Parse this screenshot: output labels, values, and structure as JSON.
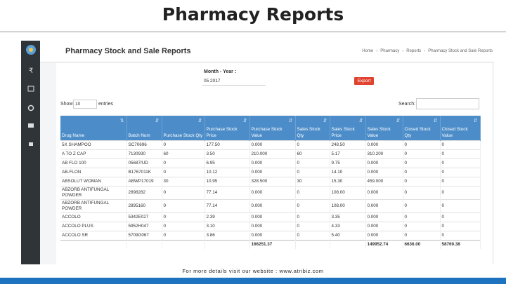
{
  "header": {
    "title": "Pharmacy Reports"
  },
  "report": {
    "title": "Pharmacy Stock and Sale Reports",
    "breadcrumb": [
      "Home",
      "Pharmacy",
      "Reports",
      "Pharmacy Stock and Sale Reports"
    ],
    "month_label": "Month - Year :",
    "month_value": "05 2017",
    "export": "Export",
    "show": "Show",
    "entries_value": "10",
    "entries": "entries",
    "search": "Search:"
  },
  "table": {
    "columns": [
      "Drug Name",
      "Batch Num",
      "Purchase Stock Qty",
      "Purchase Stock Price",
      "Purchase Stock Value",
      "Sales Stock Qty",
      "Sales Stock Price",
      "Sales Stock Value",
      "Closed Stock Qty",
      "Closed Stock Value"
    ],
    "rows": [
      [
        "5X SHAMPOO",
        "SC70696",
        "0",
        "177.50",
        "0.000",
        "0",
        "248.50",
        "0.000",
        "0",
        "0"
      ],
      [
        "A TO Z CAP",
        "7130930",
        "60",
        "3.50",
        "210.000",
        "60",
        "5.17",
        "310.200",
        "0",
        "0"
      ],
      [
        "AB FLO 100",
        "05687/UD",
        "0",
        "6.95",
        "0.000",
        "0",
        "9.75",
        "0.000",
        "0",
        "0"
      ],
      [
        "AB-FLON",
        "B1767011K",
        "0",
        "10.12",
        "0.000",
        "0",
        "14.10",
        "0.000",
        "0",
        "0"
      ],
      [
        "ABSOLUT WOMAN",
        "ABWP17019",
        "30",
        "10.95",
        "328.500",
        "30",
        "15.30",
        "459.000",
        "0",
        "0"
      ],
      [
        "ABZORB ANTIFUNGAL POWDER",
        "2898282",
        "0",
        "77.14",
        "0.000",
        "0",
        "108.00",
        "0.000",
        "0",
        "0"
      ],
      [
        "ABZORB ANTIFUNGAL POWDER",
        "2895160",
        "0",
        "77.14",
        "0.000",
        "0",
        "108.00",
        "0.000",
        "0",
        "0"
      ],
      [
        "ACCOLO",
        "5342E027",
        "0",
        "2.39",
        "0.000",
        "0",
        "3.35",
        "0.000",
        "0",
        "0"
      ],
      [
        "ACCOLO PLUS",
        "5952H047",
        "0",
        "3.10",
        "0.000",
        "0",
        "4.33",
        "0.000",
        "0",
        "0"
      ],
      [
        "ACCOLO SR",
        "5709G067",
        "0",
        "3.86",
        "0.000",
        "0",
        "5.40",
        "0.000",
        "0",
        "0"
      ]
    ],
    "totals": {
      "purchase_value": "166251.37",
      "sales_value": "149952.74",
      "closed_qty": "6636.00",
      "closed_value": "58769.38"
    }
  },
  "footer": {
    "text": "For more details visit our website : www.atribiz.com"
  }
}
